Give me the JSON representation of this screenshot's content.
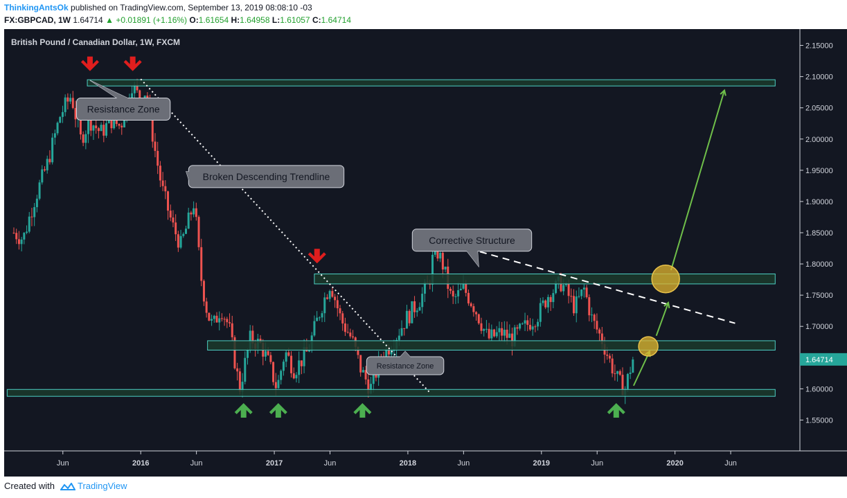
{
  "header": {
    "author": "ThinkingAntsOk",
    "published": "published on TradingView.com, September 13, 2019 08:08:10 -03",
    "symbol": "FX:GBPCAD, 1W",
    "last": "1.64714",
    "change_arrow": "▲",
    "change": "+0.01891 (+1.16%)",
    "open_label": "O:",
    "open": "1.61654",
    "high_label": "H:",
    "high": "1.64958",
    "low_label": "L:",
    "low": "1.61057",
    "close_label": "C:",
    "close": "1.64714"
  },
  "footer": {
    "created_with": "Created with",
    "brand": "TradingView",
    "logo_icon": "tradingview-logo-icon"
  },
  "colors": {
    "background": "#131722",
    "up_candle": "#26a69a",
    "down_candle": "#ef5350",
    "zone_fill": "#1b3a2b",
    "zone_border": "#4dd0c4",
    "red_arrow": "#e01e1e",
    "green_arrow": "#4caf50",
    "circle": "#e3b52f",
    "price_tag": "#26a69a"
  },
  "chart_data": {
    "type": "candlestick",
    "title": "British Pound / Canadian Dollar, 1W, FXCM",
    "interval": "1W",
    "ylim": [
      1.515,
      2.165
    ],
    "y_ticks": [
      "2.15000",
      "2.10000",
      "2.05000",
      "2.00000",
      "1.95000",
      "1.90000",
      "1.85000",
      "1.80000",
      "1.75000",
      "1.70000",
      "1.65000",
      "1.60000",
      "1.55000"
    ],
    "x_ticks": [
      {
        "label": "Jun",
        "t": 2015.417,
        "bold": false
      },
      {
        "label": "2016",
        "t": 2016.0,
        "bold": true
      },
      {
        "label": "Jun",
        "t": 2016.417,
        "bold": false
      },
      {
        "label": "2017",
        "t": 2017.0,
        "bold": true
      },
      {
        "label": "Jun",
        "t": 2017.417,
        "bold": false
      },
      {
        "label": "2018",
        "t": 2018.0,
        "bold": true
      },
      {
        "label": "Jun",
        "t": 2018.417,
        "bold": false
      },
      {
        "label": "2019",
        "t": 2019.0,
        "bold": true
      },
      {
        "label": "Jun",
        "t": 2019.417,
        "bold": false
      },
      {
        "label": "2020",
        "t": 2020.0,
        "bold": true
      },
      {
        "label": "Jun",
        "t": 2020.417,
        "bold": false
      }
    ],
    "last_price": "1.64714",
    "price_path": [
      [
        2015.05,
        1.85
      ],
      [
        2015.12,
        1.84
      ],
      [
        2015.2,
        1.9
      ],
      [
        2015.3,
        1.96
      ],
      [
        2015.4,
        2.04
      ],
      [
        2015.48,
        2.07
      ],
      [
        2015.55,
        2.0
      ],
      [
        2015.62,
        2.03
      ],
      [
        2015.7,
        2.01
      ],
      [
        2015.78,
        2.03
      ],
      [
        2015.85,
        2.02
      ],
      [
        2015.93,
        2.09
      ],
      [
        2016.0,
        2.06
      ],
      [
        2016.04,
        2.08
      ],
      [
        2016.1,
        1.99
      ],
      [
        2016.16,
        1.92
      ],
      [
        2016.24,
        1.86
      ],
      [
        2016.3,
        1.83
      ],
      [
        2016.36,
        1.87
      ],
      [
        2016.4,
        1.9
      ],
      [
        2016.45,
        1.78
      ],
      [
        2016.5,
        1.72
      ],
      [
        2016.54,
        1.7
      ],
      [
        2016.6,
        1.73
      ],
      [
        2016.66,
        1.7
      ],
      [
        2016.74,
        1.6
      ],
      [
        2016.82,
        1.68
      ],
      [
        2016.9,
        1.67
      ],
      [
        2016.96,
        1.64
      ],
      [
        2017.02,
        1.6
      ],
      [
        2017.08,
        1.66
      ],
      [
        2017.15,
        1.63
      ],
      [
        2017.25,
        1.66
      ],
      [
        2017.35,
        1.73
      ],
      [
        2017.42,
        1.77
      ],
      [
        2017.5,
        1.71
      ],
      [
        2017.58,
        1.68
      ],
      [
        2017.65,
        1.63
      ],
      [
        2017.72,
        1.6
      ],
      [
        2017.8,
        1.65
      ],
      [
        2017.9,
        1.68
      ],
      [
        2017.98,
        1.71
      ],
      [
        2018.08,
        1.74
      ],
      [
        2018.16,
        1.77
      ],
      [
        2018.2,
        1.83
      ],
      [
        2018.26,
        1.8
      ],
      [
        2018.33,
        1.74
      ],
      [
        2018.42,
        1.76
      ],
      [
        2018.5,
        1.73
      ],
      [
        2018.6,
        1.68
      ],
      [
        2018.7,
        1.69
      ],
      [
        2018.78,
        1.68
      ],
      [
        2018.88,
        1.7
      ],
      [
        2018.98,
        1.72
      ],
      [
        2019.05,
        1.75
      ],
      [
        2019.15,
        1.77
      ],
      [
        2019.25,
        1.73
      ],
      [
        2019.32,
        1.76
      ],
      [
        2019.38,
        1.71
      ],
      [
        2019.45,
        1.68
      ],
      [
        2019.52,
        1.64
      ],
      [
        2019.58,
        1.61
      ],
      [
        2019.63,
        1.6
      ],
      [
        2019.66,
        1.63
      ],
      [
        2019.7,
        1.647
      ]
    ],
    "zones": [
      {
        "t0": 2015.6,
        "t1": 2020.75,
        "low": 2.085,
        "high": 2.095
      },
      {
        "t0": 2017.3,
        "t1": 2020.75,
        "low": 1.768,
        "high": 1.784
      },
      {
        "t0": 2016.5,
        "t1": 2020.75,
        "low": 1.662,
        "high": 1.677
      },
      {
        "t0": 2015.0,
        "t1": 2020.75,
        "low": 1.588,
        "high": 1.599
      }
    ],
    "callouts": [
      {
        "text": "Resistance Zone",
        "t": 2015.87,
        "price": 2.048,
        "t_tip": 2015.62,
        "price_tip": 2.094
      },
      {
        "text": "Broken Descending Trendline",
        "t": 2016.94,
        "price": 1.94,
        "t_tip": 2016.34,
        "price_tip": 1.948
      },
      {
        "text": "Corrective Structure",
        "t": 2018.48,
        "price": 1.838,
        "t_tip": 2018.53,
        "price_tip": 1.796
      },
      {
        "text": "Resistance Zone",
        "t": 2017.98,
        "price": 1.637,
        "t_tip": 2017.98,
        "price_tip": 1.66,
        "small": true
      }
    ],
    "trendline_descending": {
      "from": [
        2016.0,
        2.096
      ],
      "to": [
        2018.16,
        1.595
      ]
    },
    "trendline_corrective": {
      "from": [
        2018.2,
        1.84
      ],
      "to": [
        2020.45,
        1.705
      ]
    },
    "red_arrows": [
      [
        2015.62,
        2.12
      ],
      [
        2015.94,
        2.12
      ],
      [
        2017.32,
        1.812
      ]
    ],
    "green_arrows": [
      [
        2016.77,
        1.566
      ],
      [
        2017.03,
        1.566
      ],
      [
        2017.66,
        1.566
      ],
      [
        2019.56,
        1.566
      ]
    ],
    "projections": [
      {
        "from": [
          2019.69,
          1.605
        ],
        "to": [
          2019.81,
          1.66
        ]
      },
      {
        "from": [
          2019.86,
          1.685
        ],
        "to": [
          2019.95,
          1.738
        ]
      },
      {
        "from": [
          2019.97,
          1.79
        ],
        "to": [
          2020.37,
          2.078
        ]
      }
    ],
    "circles": [
      {
        "t": 2019.8,
        "price": 1.668,
        "r": 14
      },
      {
        "t": 2019.93,
        "price": 1.776,
        "r": 20
      }
    ]
  }
}
